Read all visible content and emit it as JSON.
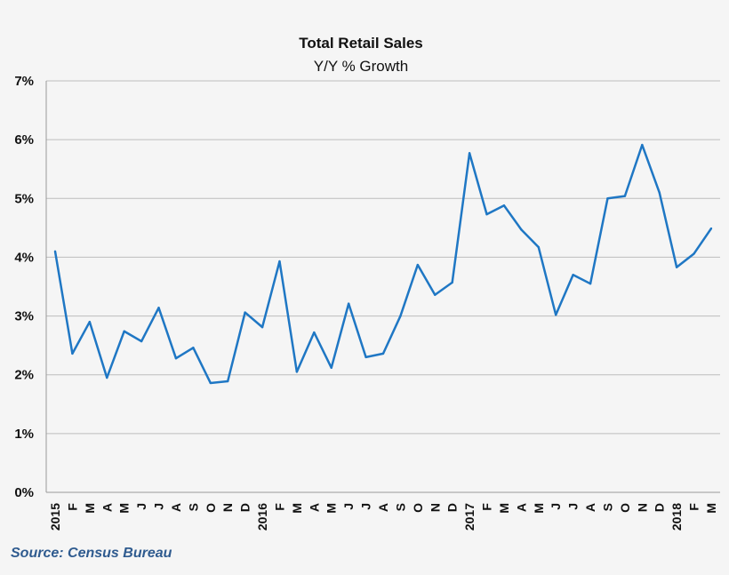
{
  "chart_data": {
    "type": "line",
    "title": "Total Retail Sales",
    "subtitle": "Y/Y % Growth",
    "xlabel": "",
    "ylabel": "",
    "ylim": [
      0,
      7
    ],
    "yticks": [
      "0%",
      "1%",
      "2%",
      "3%",
      "4%",
      "5%",
      "6%",
      "7%"
    ],
    "grid": true,
    "line_color": "#1f77c4",
    "categories": [
      "2015",
      "F",
      "M",
      "A",
      "M",
      "J",
      "J",
      "A",
      "S",
      "O",
      "N",
      "D",
      "2016",
      "F",
      "M",
      "A",
      "M",
      "J",
      "J",
      "A",
      "S",
      "O",
      "N",
      "D",
      "2017",
      "F",
      "M",
      "A",
      "M",
      "J",
      "J",
      "A",
      "S",
      "O",
      "N",
      "D",
      "2018",
      "F",
      "M"
    ],
    "series": [
      {
        "values": [
          4.1,
          2.36,
          2.9,
          1.95,
          2.74,
          2.57,
          3.14,
          2.28,
          2.46,
          1.86,
          1.89,
          3.06,
          2.81,
          3.93,
          2.05,
          2.72,
          2.12,
          3.21,
          2.3,
          2.36,
          3.0,
          3.87,
          3.36,
          3.57,
          5.77,
          4.73,
          4.88,
          4.47,
          4.17,
          3.02,
          3.7,
          3.55,
          5.0,
          5.04,
          5.91,
          5.1,
          3.83,
          4.06,
          4.49
        ]
      }
    ]
  },
  "source": "Source: Census Bureau"
}
